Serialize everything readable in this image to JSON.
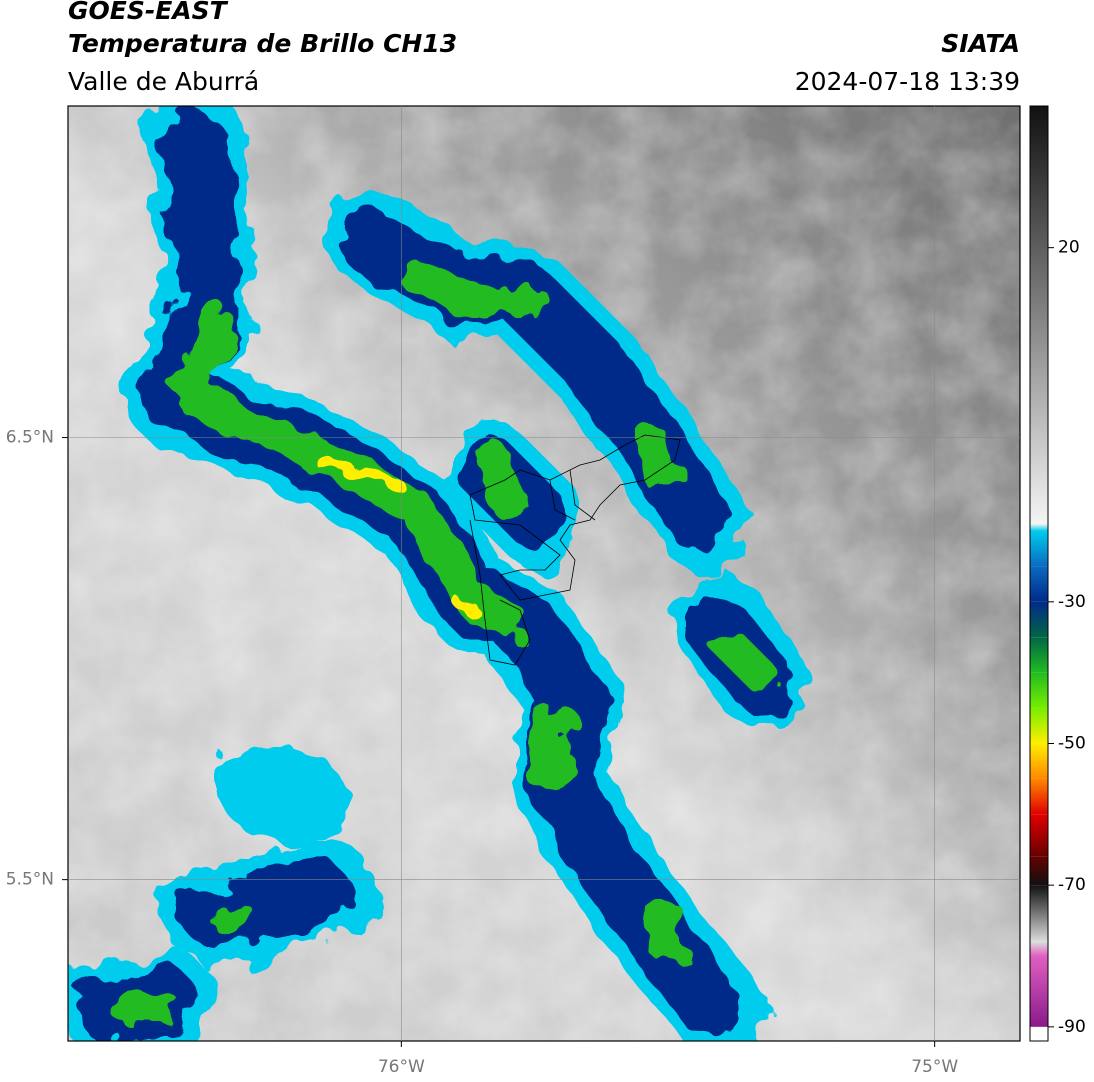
{
  "header": {
    "title": "GOES-EAST",
    "subtitle": "Temperatura de Brillo CH13",
    "region": "Valle de Aburrá",
    "source": "SIATA",
    "timestamp": "2024-07-18 13:39"
  },
  "map": {
    "type": "image-map",
    "xlim": [
      -76.625,
      -74.84
    ],
    "ylim": [
      5.135,
      7.25
    ],
    "xticks": [
      {
        "value": -76,
        "label": "76°W"
      },
      {
        "value": -75,
        "label": "75°W"
      }
    ],
    "yticks": [
      {
        "value": 6.5,
        "label": "6.5°N"
      },
      {
        "value": 5.5,
        "label": "5.5°N"
      }
    ],
    "grid": true
  },
  "colorbar": {
    "lim": [
      -92,
      40
    ],
    "ticks": [
      20,
      -30,
      -50,
      -70,
      -90
    ],
    "stops": [
      {
        "value": -92,
        "color": "#ffffff"
      },
      {
        "value": -90,
        "color": "#ffffff"
      },
      {
        "value": -90,
        "color": "#8b1a8b"
      },
      {
        "value": -80,
        "color": "#e060c0"
      },
      {
        "value": -78,
        "color": "#dddddd"
      },
      {
        "value": -70,
        "color": "#111111"
      },
      {
        "value": -66,
        "color": "#660000"
      },
      {
        "value": -60,
        "color": "#e00000"
      },
      {
        "value": -55,
        "color": "#ff8800"
      },
      {
        "value": -50,
        "color": "#ffee00"
      },
      {
        "value": -45,
        "color": "#77ee00"
      },
      {
        "value": -40,
        "color": "#22bb22"
      },
      {
        "value": -35,
        "color": "#006644"
      },
      {
        "value": -30,
        "color": "#012a8a"
      },
      {
        "value": -25,
        "color": "#0a6ac0"
      },
      {
        "value": -20,
        "color": "#00ccee"
      },
      {
        "value": -19,
        "color": "#f4f4f4"
      },
      {
        "value": 40,
        "color": "#111111"
      }
    ]
  }
}
